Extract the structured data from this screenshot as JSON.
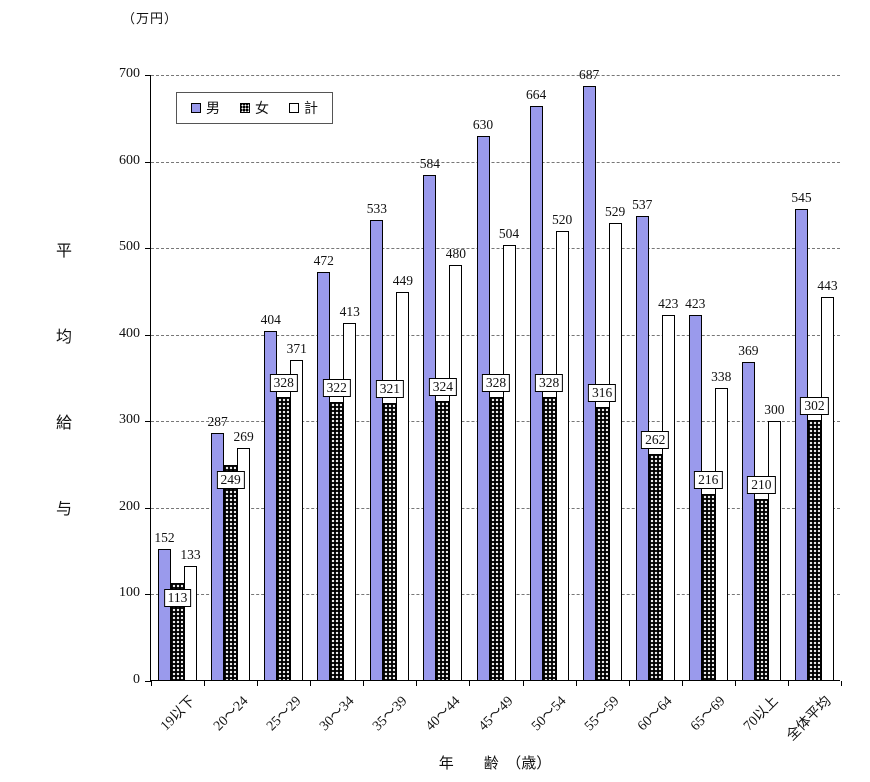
{
  "chart_data": {
    "type": "bar",
    "title": "",
    "unit_label": "（万円）",
    "xlabel": "年　　齢　（歳）",
    "ylabel": "平均給与",
    "ylim": [
      0,
      700
    ],
    "yticks": [
      0,
      100,
      200,
      300,
      400,
      500,
      600,
      700
    ],
    "grid": "dashed-horizontal",
    "legend_position": "top-left-inside",
    "categories": [
      "19以下",
      "20～24",
      "25～29",
      "30～34",
      "35～39",
      "40～44",
      "45～49",
      "50～54",
      "55～59",
      "60～64",
      "65～69",
      "70以上",
      "全体平均"
    ],
    "series": [
      {
        "name": "男",
        "color": "#9a9aec",
        "style": "solid-lavender",
        "values": [
          152,
          287,
          404,
          472,
          533,
          584,
          630,
          664,
          687,
          537,
          423,
          369,
          545
        ]
      },
      {
        "name": "女",
        "color": "#000000",
        "style": "black-dotted",
        "values": [
          113,
          249,
          328,
          322,
          321,
          324,
          328,
          328,
          316,
          262,
          216,
          210,
          302
        ]
      },
      {
        "name": "計",
        "color": "#ffffff",
        "style": "white-outlined",
        "values": [
          133,
          269,
          371,
          413,
          449,
          480,
          504,
          520,
          529,
          423,
          338,
          300,
          443
        ]
      }
    ]
  }
}
